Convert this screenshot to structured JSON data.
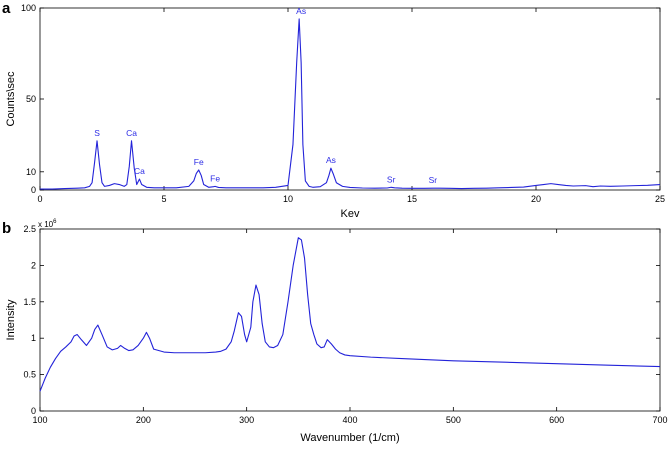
{
  "chart_data": [
    {
      "panel": "a",
      "type": "line",
      "xlabel": "Kev",
      "ylabel": "Counts\\sec",
      "xlim": [
        0,
        25
      ],
      "ylim": [
        0,
        100
      ],
      "xticks": [
        0,
        5,
        10,
        15,
        20,
        25
      ],
      "yticks": [
        0,
        10,
        50,
        100
      ],
      "grid": false,
      "line_color": "#2323d9",
      "peaks": [
        {
          "label": "S",
          "x": 2.3,
          "y": 27
        },
        {
          "label": "Ca",
          "x": 3.69,
          "y": 27
        },
        {
          "label": "Ca",
          "x": 4.01,
          "y": 6
        },
        {
          "label": "Fe",
          "x": 6.4,
          "y": 11
        },
        {
          "label": "Fe",
          "x": 7.06,
          "y": 2
        },
        {
          "label": "As",
          "x": 10.53,
          "y": 94
        },
        {
          "label": "As",
          "x": 11.73,
          "y": 12
        },
        {
          "label": "Sr",
          "x": 14.16,
          "y": 1.5
        },
        {
          "label": "Sr",
          "x": 15.84,
          "y": 1
        }
      ],
      "series": [
        {
          "x": [
            0,
            0.5,
            1,
            1.5,
            1.8,
            2.0,
            2.1,
            2.2,
            2.3,
            2.4,
            2.5,
            2.6,
            2.8,
            3.0,
            3.2,
            3.4,
            3.5,
            3.6,
            3.69,
            3.8,
            3.9,
            4.01,
            4.1,
            4.3,
            4.6,
            5,
            5.5,
            6,
            6.2,
            6.3,
            6.4,
            6.5,
            6.6,
            6.8,
            7.0,
            7.06,
            7.2,
            7.5,
            8,
            8.5,
            9,
            9.5,
            10,
            10.2,
            10.35,
            10.45,
            10.53,
            10.6,
            10.7,
            10.85,
            11,
            11.3,
            11.55,
            11.65,
            11.73,
            11.82,
            11.95,
            12.2,
            12.5,
            13,
            13.5,
            14,
            14.16,
            14.3,
            14.6,
            15,
            15.5,
            15.84,
            16.1,
            16.5,
            17,
            17.5,
            18,
            18.5,
            19,
            19.5,
            20,
            20.3,
            20.6,
            20.9,
            21.2,
            21.5,
            22,
            22.3,
            22.6,
            23,
            23.5,
            24,
            24.5,
            25
          ],
          "y": [
            0.5,
            0.5,
            0.8,
            1,
            1.2,
            2,
            4,
            15,
            27,
            14,
            4,
            2,
            2.5,
            3.5,
            3,
            2,
            3,
            13,
            27,
            12,
            3,
            6,
            3,
            1.5,
            1.2,
            1.2,
            1.2,
            2,
            5,
            9,
            11,
            8,
            3,
            1.5,
            1.8,
            2,
            1.4,
            1.2,
            1.2,
            1.2,
            1.2,
            1.5,
            2.5,
            25,
            70,
            94,
            70,
            25,
            5,
            2,
            1.5,
            1.8,
            4,
            8,
            12,
            9,
            4,
            2,
            1.4,
            1.1,
            1,
            1.1,
            1.5,
            1.2,
            1,
            0.9,
            0.9,
            1,
            1,
            0.9,
            0.8,
            0.9,
            1,
            1.2,
            1.4,
            1.6,
            2.5,
            3,
            3.5,
            3,
            2.5,
            2.2,
            2.4,
            1.8,
            2.2,
            2,
            2.2,
            2.4,
            2.6,
            3
          ]
        }
      ]
    },
    {
      "panel": "b",
      "type": "line",
      "xlabel": "Wavenumber (1/cm)",
      "ylabel": "Intensity",
      "xlim": [
        100,
        700
      ],
      "ylim": [
        0,
        2.5
      ],
      "xticks": [
        100,
        200,
        300,
        400,
        500,
        600,
        700
      ],
      "yticks": [
        0,
        0.5,
        1,
        1.5,
        2,
        2.5
      ],
      "y_multiplier_base": "x 10",
      "y_multiplier_exponent": "6",
      "grid": false,
      "line_color": "#2323d9",
      "series": [
        {
          "x": [
            100,
            105,
            110,
            115,
            120,
            125,
            130,
            133,
            136,
            140,
            145,
            150,
            153,
            156,
            160,
            165,
            170,
            175,
            178,
            182,
            186,
            190,
            195,
            200,
            203,
            206,
            210,
            220,
            230,
            240,
            250,
            260,
            270,
            275,
            280,
            285,
            288,
            292,
            295,
            298,
            300,
            304,
            306,
            309,
            312,
            315,
            318,
            322,
            326,
            330,
            335,
            340,
            345,
            350,
            353,
            356,
            359,
            362,
            365,
            368,
            372,
            375,
            378,
            382,
            386,
            390,
            395,
            400,
            420,
            450,
            500,
            550,
            600,
            650,
            700
          ],
          "y": [
            0.27,
            0.45,
            0.6,
            0.72,
            0.82,
            0.88,
            0.95,
            1.03,
            1.05,
            0.98,
            0.9,
            1.0,
            1.12,
            1.18,
            1.05,
            0.88,
            0.84,
            0.86,
            0.9,
            0.86,
            0.83,
            0.84,
            0.9,
            1.0,
            1.08,
            1.0,
            0.85,
            0.81,
            0.8,
            0.8,
            0.8,
            0.8,
            0.81,
            0.82,
            0.85,
            0.95,
            1.1,
            1.35,
            1.3,
            1.05,
            0.95,
            1.15,
            1.5,
            1.73,
            1.6,
            1.2,
            0.95,
            0.88,
            0.87,
            0.9,
            1.05,
            1.5,
            2.0,
            2.38,
            2.35,
            2.1,
            1.6,
            1.2,
            1.05,
            0.92,
            0.87,
            0.88,
            0.98,
            0.92,
            0.85,
            0.8,
            0.77,
            0.76,
            0.74,
            0.72,
            0.69,
            0.67,
            0.65,
            0.63,
            0.61
          ]
        }
      ]
    }
  ]
}
